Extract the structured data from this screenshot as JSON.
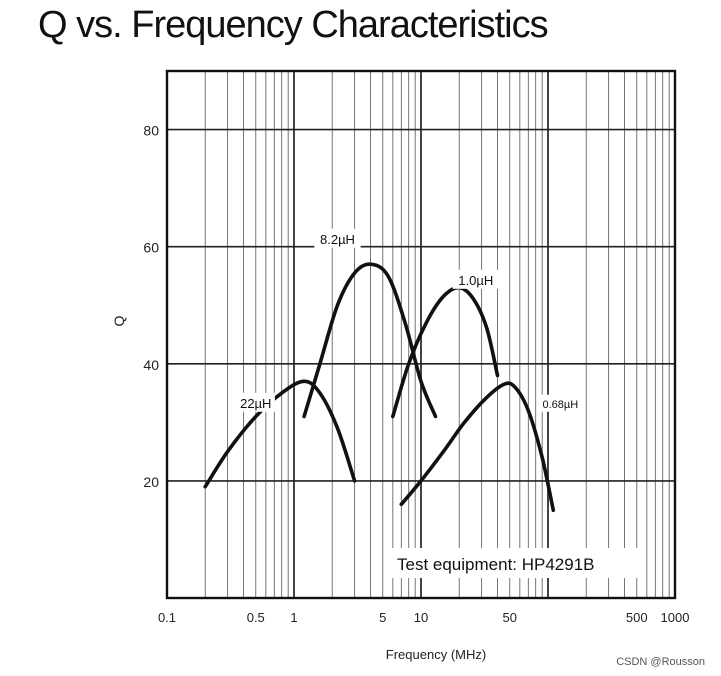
{
  "chart_data": {
    "type": "line",
    "title": "Q vs. Frequency Characteristics",
    "xlabel": "Frequency (MHz)",
    "ylabel": "Q",
    "x_scale": "log",
    "xlim": [
      0.1,
      1000
    ],
    "ylim": [
      0,
      90
    ],
    "x_ticks": [
      {
        "value": 0.1,
        "label": "0.1"
      },
      {
        "value": 0.5,
        "label": "0.5"
      },
      {
        "value": 1,
        "label": "1"
      },
      {
        "value": 5,
        "label": "5"
      },
      {
        "value": 10,
        "label": "10"
      },
      {
        "value": 50,
        "label": "50"
      },
      {
        "value": 500,
        "label": "500"
      },
      {
        "value": 1000,
        "label": "1000"
      }
    ],
    "y_ticks": [
      {
        "value": 20,
        "label": "20"
      },
      {
        "value": 40,
        "label": "40"
      },
      {
        "value": 60,
        "label": "60"
      },
      {
        "value": 80,
        "label": "80"
      }
    ],
    "grid": true,
    "annotation": "Test equipment: HP4291B",
    "series": [
      {
        "name": "22µH",
        "x": [
          0.2,
          0.3,
          0.5,
          0.8,
          1.2,
          1.6,
          2.2,
          3.0
        ],
        "y": [
          19,
          25,
          31,
          35,
          37,
          35,
          29,
          20
        ]
      },
      {
        "name": "8.2µH",
        "x": [
          1.2,
          1.6,
          2.2,
          3.0,
          4.0,
          5.5,
          7.5,
          10,
          13
        ],
        "y": [
          31,
          40,
          50,
          55.5,
          57,
          55,
          47,
          37,
          31
        ]
      },
      {
        "name": "1.0µH",
        "x": [
          6,
          8,
          11,
          15,
          20,
          26,
          33,
          40
        ],
        "y": [
          31,
          40,
          47,
          51.5,
          53,
          51,
          46,
          38
        ]
      },
      {
        "name": "0.68µH",
        "x": [
          7,
          10,
          15,
          22,
          32,
          45,
          55,
          70,
          90,
          110
        ],
        "y": [
          16,
          20,
          25,
          30,
          34,
          36.5,
          36,
          32,
          24,
          15
        ]
      }
    ],
    "series_labels": [
      {
        "text": "22µH",
        "x": 0.5,
        "y": 33
      },
      {
        "text": "8.2µH",
        "x": 2.2,
        "y": 61
      },
      {
        "text": "1.0µH",
        "x": 27,
        "y": 54
      },
      {
        "text": "0.68µH",
        "x": 125,
        "y": 33
      }
    ]
  },
  "watermark": "CSDN @Rousson"
}
